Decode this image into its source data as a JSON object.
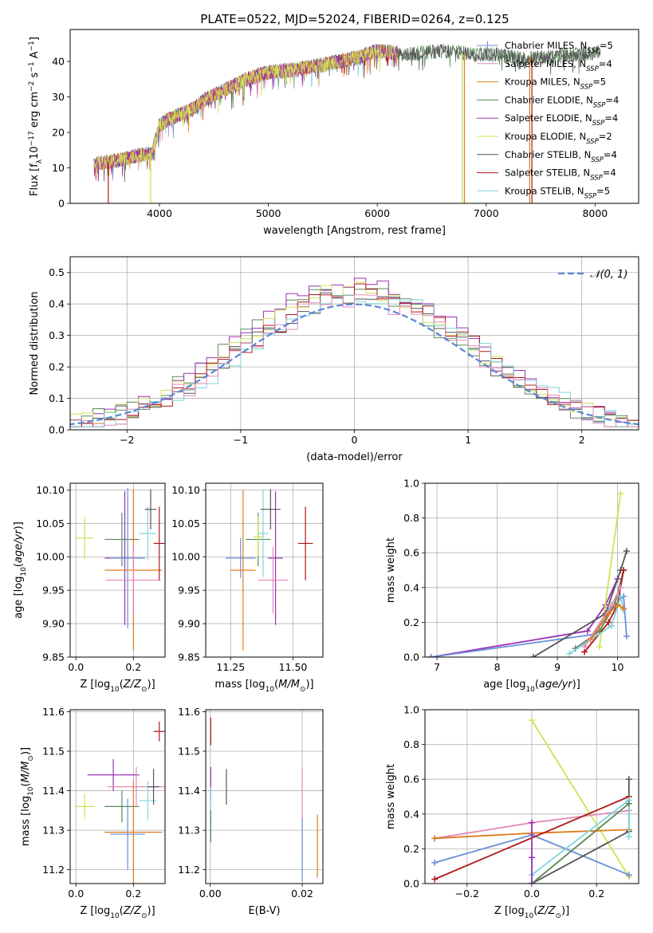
{
  "figure_title": "PLATE=0522, MJD=52024, FIBERID=0264, z=0.125",
  "series": [
    {
      "name": "Chabrier MILES, N_SSP=5",
      "label_base": "Chabrier MILES, N",
      "label_sub": "SSP",
      "label_tail": "=5",
      "color": "#6a8fd8",
      "marker": "plus"
    },
    {
      "name": "Salpeter MILES, N_SSP=4",
      "label_base": "Salpeter MILES, N",
      "label_sub": "SSP",
      "label_tail": "=4",
      "color": "#e38ab8",
      "marker": "none"
    },
    {
      "name": "Kroupa MILES, N_SSP=5",
      "label_base": "Kroupa MILES, N",
      "label_sub": "SSP",
      "label_tail": "=5",
      "color": "#e07b1d",
      "marker": "none"
    },
    {
      "name": "Chabrier ELODIE, N_SSP=4",
      "label_base": "Chabrier ELODIE, N",
      "label_sub": "SSP",
      "label_tail": "=4",
      "color": "#5a8a5a",
      "marker": "none"
    },
    {
      "name": "Salpeter ELODIE, N_SSP=4",
      "label_base": "Salpeter ELODIE, N",
      "label_sub": "SSP",
      "label_tail": "=4",
      "color": "#9b30b5",
      "marker": "none"
    },
    {
      "name": "Kroupa ELODIE, N_SSP=2",
      "label_base": "Kroupa ELODIE, N",
      "label_sub": "SSP",
      "label_tail": "=2",
      "color": "#cfe355",
      "marker": "none"
    },
    {
      "name": "Chabrier STELIB, N_SSP=4",
      "label_base": "Chabrier STELIB, N",
      "label_sub": "SSP",
      "label_tail": "=4",
      "color": "#555555",
      "marker": "none"
    },
    {
      "name": "Salpeter STELIB, N_SSP=4",
      "label_base": "Salpeter STELIB, N",
      "label_sub": "SSP",
      "label_tail": "=4",
      "color": "#b01818",
      "marker": "none"
    },
    {
      "name": "Kroupa STELIB, N_SSP=5",
      "label_base": "Kroupa STELIB, N",
      "label_sub": "SSP",
      "label_tail": "=5",
      "color": "#7fd6dc",
      "marker": "none"
    }
  ],
  "chart_data": [
    {
      "type": "line",
      "id": "spectrum",
      "xlabel": "wavelength [Angstrom, rest frame]",
      "ylabel": "Flux [f_λ 10^-17 erg cm^-2 s^-1 A^-1]",
      "xlim": [
        3180,
        8400
      ],
      "ylim": [
        0,
        49
      ],
      "xticks": [
        4000,
        5000,
        6000,
        7000,
        8000
      ],
      "yticks": [
        0,
        10,
        20,
        30,
        40
      ],
      "continuum_x": [
        3400,
        3600,
        3800,
        3930,
        4000,
        4100,
        4300,
        4400,
        4600,
        4800,
        5000,
        5200,
        5500,
        5800,
        6000,
        6300,
        6600,
        6900,
        7100,
        7300,
        7420
      ],
      "continuum_y": [
        11,
        12,
        13.5,
        14,
        22,
        24,
        26.5,
        29,
        32,
        35,
        37,
        37.5,
        39,
        41,
        43,
        42,
        43,
        42,
        42,
        41,
        41
      ],
      "spectrum_end": [
        7420,
        8050
      ],
      "dropouts": [
        {
          "x": 3530,
          "series": "Salpeter STELIB, N_SSP=4"
        },
        {
          "x": 3920,
          "series": "Kroupa ELODIE, N_SSP=2"
        },
        {
          "x": 6780,
          "series": "Kroupa ELODIE, N_SSP=2"
        },
        {
          "x": 6800,
          "series": "Kroupa MILES, N_SSP=5"
        },
        {
          "x": 7400,
          "series": "Kroupa MILES, N_SSP=5"
        },
        {
          "x": 7420,
          "series": "Salpeter STELIB, N_SSP=4"
        }
      ],
      "legend_position": "upper right",
      "grid": false
    },
    {
      "type": "step-histogram",
      "id": "residuals",
      "xlabel": "(data-model)/error",
      "ylabel": "Normed distribution",
      "xlim": [
        -2.5,
        2.5
      ],
      "ylim": [
        0,
        0.55
      ],
      "xticks": [
        -2,
        -1,
        0,
        1,
        2
      ],
      "yticks": [
        0.0,
        0.1,
        0.2,
        0.3,
        0.4,
        0.5
      ],
      "bin_width": 0.1,
      "reference_curve": {
        "label": "N(0,1)",
        "label_display": "𝒩(0, 1)",
        "color": "#5b86d6",
        "style": "dashed",
        "mu": 0,
        "sigma": 1
      },
      "histograms": [
        {
          "series": "Chabrier ELODIE, N_SSP=4",
          "peak": 0.485,
          "peak_x": -0.35
        },
        {
          "series": "Salpeter ELODIE, N_SSP=4",
          "peak": 0.52,
          "peak_x": -0.05
        },
        {
          "series": "Kroupa ELODIE, N_SSP=2",
          "peak": 0.49,
          "peak_x": 0.05
        },
        {
          "series": "Chabrier STELIB, N_SSP=4",
          "peak": 0.46,
          "peak_x": 0.15
        },
        {
          "series": "Salpeter STELIB, N_SSP=4",
          "peak": 0.48,
          "peak_x": 0.45
        },
        {
          "series": "Kroupa STELIB, N_SSP=5",
          "peak": 0.47,
          "peak_x": 0.65
        },
        {
          "series": "Salpeter MILES, N_SSP=4",
          "peak": 0.45,
          "peak_x": 0.25
        }
      ],
      "legend_position": "upper right",
      "grid": true
    },
    {
      "type": "scatter",
      "id": "age_vs_Z",
      "xlabel": "Z [log10(Z/Z⊙)]",
      "ylabel": "age [log10(age/yr)]",
      "xlim": [
        -0.02,
        0.31
      ],
      "ylim": [
        9.85,
        10.11
      ],
      "xticks": [
        0.0,
        0.2
      ],
      "yticks": [
        9.85,
        9.9,
        9.95,
        10.0,
        10.05,
        10.1
      ],
      "points": [
        {
          "series": "Kroupa ELODIE, N_SSP=2",
          "x": 0.03,
          "y": 10.028,
          "xerr": 0.03,
          "yerr": 0.032
        },
        {
          "series": "Chabrier ELODIE, N_SSP=4",
          "x": 0.16,
          "y": 10.026,
          "xerr": 0.06,
          "yerr": 0.04
        },
        {
          "series": "Salpeter ELODIE, N_SSP=4",
          "x": 0.17,
          "y": 9.998,
          "xerr": 0.07,
          "yerr": 0.1
        },
        {
          "series": "Chabrier MILES, N_SSP=5",
          "x": 0.18,
          "y": 9.998,
          "xerr": 0.06,
          "yerr": 0.105
        },
        {
          "series": "Kroupa MILES, N_SSP=5",
          "x": 0.2,
          "y": 9.98,
          "xerr": 0.1,
          "yerr": 0.12
        },
        {
          "series": "Salpeter MILES, N_SSP=4",
          "x": 0.2,
          "y": 9.965,
          "xerr": 0.095,
          "yerr": 0.05
        },
        {
          "series": "Kroupa STELIB, N_SSP=5",
          "x": 0.25,
          "y": 10.035,
          "xerr": 0.03,
          "yerr": 0.04
        },
        {
          "series": "Chabrier STELIB, N_SSP=4",
          "x": 0.26,
          "y": 10.071,
          "xerr": 0.02,
          "yerr": 0.03
        },
        {
          "series": "Salpeter STELIB, N_SSP=4",
          "x": 0.29,
          "y": 10.02,
          "xerr": 0.02,
          "yerr": 0.055
        }
      ],
      "grid": true
    },
    {
      "type": "scatter",
      "id": "age_vs_mass",
      "xlabel": "mass [log10(M/M⊙)]",
      "ylabel": "",
      "xlim": [
        11.15,
        11.62
      ],
      "ylim": [
        9.85,
        10.11
      ],
      "xticks": [
        11.25,
        11.5
      ],
      "yticks": [
        9.85,
        9.9,
        9.95,
        10.0,
        10.05,
        10.1
      ],
      "points": [
        {
          "series": "Chabrier MILES, N_SSP=5",
          "x": 11.29,
          "y": 9.998,
          "xerr": 0.06,
          "yerr": 0.03
        },
        {
          "series": "Kroupa MILES, N_SSP=5",
          "x": 11.3,
          "y": 9.98,
          "xerr": 0.05,
          "yerr": 0.12
        },
        {
          "series": "Chabrier ELODIE, N_SSP=4",
          "x": 11.36,
          "y": 10.026,
          "xerr": 0.05,
          "yerr": 0.04
        },
        {
          "series": "Kroupa ELODIE, N_SSP=2",
          "x": 11.36,
          "y": 10.03,
          "xerr": 0.02,
          "yerr": 0.03
        },
        {
          "series": "Kroupa STELIB, N_SSP=5",
          "x": 11.38,
          "y": 10.035,
          "xerr": 0.02,
          "yerr": 0.065
        },
        {
          "series": "Salpeter ELODIE, N_SSP=4",
          "x": 11.43,
          "y": 9.998,
          "xerr": 0.03,
          "yerr": 0.1
        },
        {
          "series": "Salpeter MILES, N_SSP=4",
          "x": 11.42,
          "y": 9.965,
          "xerr": 0.06,
          "yerr": 0.05
        },
        {
          "series": "Chabrier STELIB, N_SSP=4",
          "x": 11.41,
          "y": 10.071,
          "xerr": 0.04,
          "yerr": 0.03
        },
        {
          "series": "Salpeter STELIB, N_SSP=4",
          "x": 11.55,
          "y": 10.02,
          "xerr": 0.03,
          "yerr": 0.055
        }
      ],
      "grid": true
    },
    {
      "type": "line",
      "id": "massweight_vs_age",
      "xlabel": "age [log10(age/yr)]",
      "ylabel": "mass weight",
      "xlim": [
        6.8,
        10.35
      ],
      "ylim": [
        0,
        1
      ],
      "xticks": [
        7,
        8,
        9,
        10
      ],
      "yticks": [
        0.0,
        0.2,
        0.4,
        0.6,
        0.8,
        1.0
      ],
      "lines": [
        {
          "series": "Salpeter ELODIE, N_SSP=4",
          "x": [
            6.9,
            9.5,
            9.8,
            10.0
          ],
          "y": [
            0.0,
            0.15,
            0.3,
            0.45
          ]
        },
        {
          "series": "Chabrier MILES, N_SSP=5",
          "x": [
            6.9,
            9.6,
            9.9,
            10.1,
            10.15
          ],
          "y": [
            0.0,
            0.13,
            0.28,
            0.35,
            0.12
          ]
        },
        {
          "series": "Kroupa ELODIE, N_SSP=2",
          "x": [
            9.7,
            10.05
          ],
          "y": [
            0.06,
            0.94
          ]
        },
        {
          "series": "Chabrier STELIB, N_SSP=4",
          "x": [
            8.6,
            9.8,
            10.05,
            10.15
          ],
          "y": [
            0.0,
            0.25,
            0.5,
            0.61
          ]
        },
        {
          "series": "Chabrier ELODIE, N_SSP=4",
          "x": [
            9.3,
            9.7,
            9.95,
            10.1
          ],
          "y": [
            0.05,
            0.15,
            0.3,
            0.5
          ]
        },
        {
          "series": "Salpeter STELIB, N_SSP=4",
          "x": [
            9.45,
            9.85,
            10.0,
            10.1
          ],
          "y": [
            0.03,
            0.2,
            0.3,
            0.5
          ]
        },
        {
          "series": "Kroupa STELIB, N_SSP=5",
          "x": [
            9.2,
            9.9,
            10.05,
            10.1
          ],
          "y": [
            0.02,
            0.18,
            0.35,
            0.27
          ]
        },
        {
          "series": "Kroupa MILES, N_SSP=5",
          "x": [
            9.55,
            9.85,
            10.0,
            10.1
          ],
          "y": [
            0.1,
            0.25,
            0.3,
            0.28
          ]
        },
        {
          "series": "Salpeter MILES, N_SSP=4",
          "x": [
            9.45,
            9.9,
            10.05
          ],
          "y": [
            0.06,
            0.3,
            0.4
          ]
        }
      ],
      "grid": true
    },
    {
      "type": "scatter",
      "id": "mass_vs_Z",
      "xlabel": "Z [log10(Z/Z⊙)]",
      "ylabel": "mass [log10(M/M⊙)]",
      "xlim": [
        -0.02,
        0.31
      ],
      "ylim": [
        11.165,
        11.605
      ],
      "xticks": [
        0.0,
        0.2
      ],
      "yticks": [
        11.2,
        11.3,
        11.4,
        11.5,
        11.6
      ],
      "points": [
        {
          "series": "Kroupa ELODIE, N_SSP=2",
          "x": 0.03,
          "y": 11.36,
          "xerr": 0.035,
          "yerr": 0.032
        },
        {
          "series": "Salpeter ELODIE, N_SSP=4",
          "x": 0.13,
          "y": 11.44,
          "xerr": 0.09,
          "yerr": 0.04
        },
        {
          "series": "Chabrier ELODIE, N_SSP=4",
          "x": 0.16,
          "y": 11.36,
          "xerr": 0.06,
          "yerr": 0.04
        },
        {
          "series": "Chabrier MILES, N_SSP=5",
          "x": 0.18,
          "y": 11.29,
          "xerr": 0.06,
          "yerr": 0.09
        },
        {
          "series": "Kroupa MILES, N_SSP=5",
          "x": 0.2,
          "y": 11.295,
          "xerr": 0.1,
          "yerr": 0.13
        },
        {
          "series": "Salpeter MILES, N_SSP=4",
          "x": 0.21,
          "y": 11.41,
          "xerr": 0.1,
          "yerr": 0.05
        },
        {
          "series": "Kroupa STELIB, N_SSP=5",
          "x": 0.25,
          "y": 11.375,
          "xerr": 0.03,
          "yerr": 0.05
        },
        {
          "series": "Chabrier STELIB, N_SSP=4",
          "x": 0.27,
          "y": 11.41,
          "xerr": 0.02,
          "yerr": 0.045
        },
        {
          "series": "Salpeter STELIB, N_SSP=4",
          "x": 0.29,
          "y": 11.55,
          "xerr": 0.02,
          "yerr": 0.025
        }
      ],
      "grid": true
    },
    {
      "type": "scatter",
      "id": "mass_vs_EBV",
      "xlabel": "E(B-V)",
      "ylabel": "",
      "xlim": [
        -0.001,
        0.0245
      ],
      "ylim": [
        11.165,
        11.605
      ],
      "xticks": [
        0.0,
        0.02
      ],
      "yticks": [
        11.2,
        11.3,
        11.4,
        11.5,
        11.6
      ],
      "points": [
        {
          "series": "Salpeter STELIB, N_SSP=4",
          "x": 0.0001,
          "y": 11.55,
          "xerr": 0,
          "yerr": 0.035
        },
        {
          "series": "Salpeter ELODIE, N_SSP=4",
          "x": 0.0001,
          "y": 11.42,
          "xerr": 0,
          "yerr": 0.04
        },
        {
          "series": "Kroupa STELIB, N_SSP=5",
          "x": 0.0001,
          "y": 11.36,
          "xerr": 0,
          "yerr": 0.05
        },
        {
          "series": "Chabrier ELODIE, N_SSP=4",
          "x": 0.0001,
          "y": 11.31,
          "xerr": 0,
          "yerr": 0.04
        },
        {
          "series": "Chabrier STELIB, N_SSP=4",
          "x": 0.0035,
          "y": 11.41,
          "xerr": 0,
          "yerr": 0.045
        },
        {
          "series": "Salpeter MILES, N_SSP=4",
          "x": 0.02,
          "y": 11.34,
          "xerr": 0,
          "yerr": 0.12
        },
        {
          "series": "Chabrier MILES, N_SSP=5",
          "x": 0.02,
          "y": 11.25,
          "xerr": 0,
          "yerr": 0.08
        },
        {
          "series": "Kroupa MILES, N_SSP=5",
          "x": 0.0233,
          "y": 11.26,
          "xerr": 0,
          "yerr": 0.08
        }
      ],
      "grid": true
    },
    {
      "type": "line",
      "id": "massweight_vs_Z",
      "xlabel": "Z [log10(Z/Z⊙)]",
      "ylabel": "mass weight",
      "xlim": [
        -0.33,
        0.33
      ],
      "ylim": [
        0,
        1
      ],
      "xticks": [
        -0.2,
        0.0,
        0.2
      ],
      "yticks": [
        0.0,
        0.2,
        0.4,
        0.6,
        0.8,
        1.0
      ],
      "lines": [
        {
          "series": "Kroupa ELODIE, N_SSP=2",
          "x": [
            0.0,
            0.3
          ],
          "y": [
            0.94,
            0.04
          ]
        },
        {
          "series": "Salpeter MILES, N_SSP=4",
          "x": [
            -0.3,
            0.0,
            0.3
          ],
          "y": [
            0.26,
            0.35,
            0.42
          ]
        },
        {
          "series": "Kroupa MILES, N_SSP=5",
          "x": [
            -0.3,
            0.0,
            0.3
          ],
          "y": [
            0.26,
            0.29,
            0.31
          ]
        },
        {
          "series": "Chabrier MILES, N_SSP=5",
          "x": [
            -0.3,
            0.0,
            0.3
          ],
          "y": [
            0.12,
            0.28,
            0.05
          ]
        },
        {
          "series": "Salpeter STELIB, N_SSP=4",
          "x": [
            -0.3,
            0.3
          ],
          "y": [
            0.025,
            0.5
          ]
        },
        {
          "series": "Chabrier STELIB, N_SSP=4",
          "x": [
            0.0,
            0.3,
            0.3
          ],
          "y": [
            0.0,
            0.3,
            0.6
          ]
        },
        {
          "series": "Kroupa STELIB, N_SSP=5",
          "x": [
            0.0,
            0.3,
            0.3
          ],
          "y": [
            0.05,
            0.48,
            0.27
          ]
        },
        {
          "series": "Chabrier ELODIE, N_SSP=4",
          "x": [
            0.0,
            0.3
          ],
          "y": [
            0.0,
            0.46
          ]
        },
        {
          "series": "Salpeter ELODIE, N_SSP=4",
          "x": [
            0.0,
            0.0,
            0.0
          ],
          "y": [
            0.0,
            0.15,
            0.35
          ]
        }
      ],
      "grid": true
    }
  ]
}
